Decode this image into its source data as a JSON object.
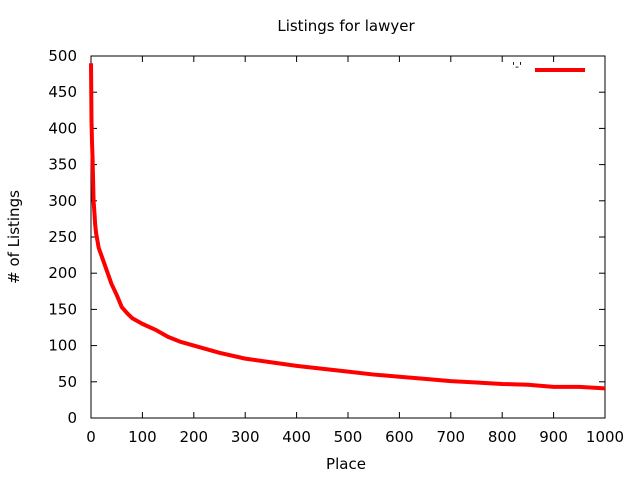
{
  "chart_data": {
    "type": "line",
    "title": "Listings for lawyer",
    "xlabel": "Place",
    "ylabel": "# of Listings",
    "xlim": [
      0,
      1000
    ],
    "ylim": [
      0,
      500
    ],
    "xticks": [
      0,
      100,
      200,
      300,
      400,
      500,
      600,
      700,
      800,
      900,
      1000
    ],
    "yticks": [
      0,
      50,
      100,
      150,
      200,
      250,
      300,
      350,
      400,
      450,
      500
    ],
    "grid": false,
    "legend_position": "top-right",
    "series": [
      {
        "name": "'-'",
        "color": "#ff0000",
        "x": [
          0,
          1,
          2,
          3,
          4,
          5,
          6,
          7,
          8,
          10,
          15,
          20,
          30,
          40,
          50,
          60,
          70,
          80,
          100,
          125,
          150,
          175,
          200,
          250,
          300,
          350,
          400,
          450,
          500,
          550,
          600,
          650,
          700,
          750,
          800,
          850,
          900,
          950,
          1000
        ],
        "y": [
          490,
          410,
          380,
          360,
          330,
          300,
          290,
          280,
          268,
          255,
          235,
          225,
          205,
          185,
          170,
          153,
          145,
          138,
          130,
          122,
          112,
          105,
          100,
          90,
          82,
          77,
          72,
          68,
          64,
          60,
          57,
          54,
          51,
          49,
          47,
          46,
          43,
          43,
          41
        ]
      }
    ]
  }
}
